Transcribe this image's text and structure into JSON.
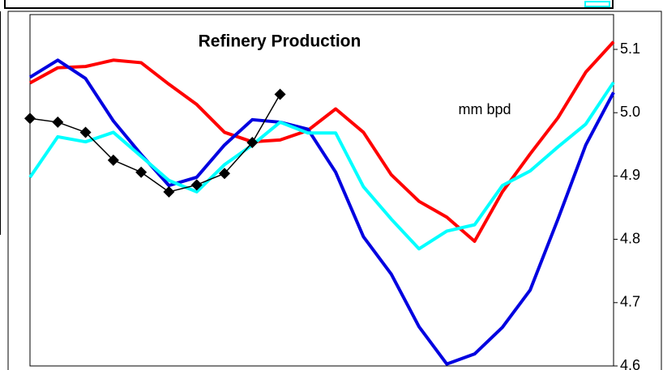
{
  "chart_data": {
    "type": "line",
    "title": "Refinery Production",
    "annotation": "mm bpd",
    "x": [
      1,
      2,
      3,
      4,
      5,
      6,
      7,
      8,
      9,
      10,
      11,
      12,
      13,
      14,
      15,
      16,
      17,
      18,
      19,
      20,
      21,
      22
    ],
    "xlim": [
      1,
      22
    ],
    "ylim": [
      4.6,
      5.155
    ],
    "yticks": [
      4.6,
      4.7,
      4.8,
      4.9,
      {
        "value": 5,
        "label": "5.0"
      },
      5.1
    ],
    "grid": false,
    "series": [
      {
        "color": "#ff0000",
        "marker": "none",
        "values": [
          5.047,
          5.071,
          5.073,
          5.083,
          5.079,
          5.045,
          5.013,
          4.969,
          4.954,
          4.957,
          4.972,
          5.006,
          4.969,
          4.902,
          4.86,
          4.835,
          4.797,
          4.875,
          4.935,
          4.992,
          5.064,
          5.112
        ]
      },
      {
        "color": "#0000e0",
        "marker": "none",
        "values": [
          5.056,
          5.083,
          5.054,
          4.987,
          4.934,
          4.885,
          4.898,
          4.949,
          4.989,
          4.985,
          4.974,
          4.906,
          4.804,
          4.745,
          4.662,
          4.603,
          4.619,
          4.661,
          4.72,
          4.832,
          4.949,
          5.032
        ]
      },
      {
        "color": "#00ffff",
        "marker": "none",
        "values": [
          4.898,
          4.962,
          4.954,
          4.969,
          4.931,
          4.893,
          4.875,
          4.918,
          4.949,
          4.985,
          4.968,
          4.968,
          4.883,
          4.832,
          4.785,
          4.813,
          4.823,
          4.885,
          4.908,
          4.946,
          4.982,
          5.048
        ]
      },
      {
        "color": "#000000",
        "marker": "diamond",
        "values": [
          4.991,
          4.985,
          4.969,
          4.925,
          4.906,
          4.875,
          4.886,
          4.904,
          4.953,
          5.029,
          null,
          null,
          null,
          null,
          null,
          null,
          null,
          null,
          null,
          null,
          null,
          null
        ]
      }
    ]
  }
}
